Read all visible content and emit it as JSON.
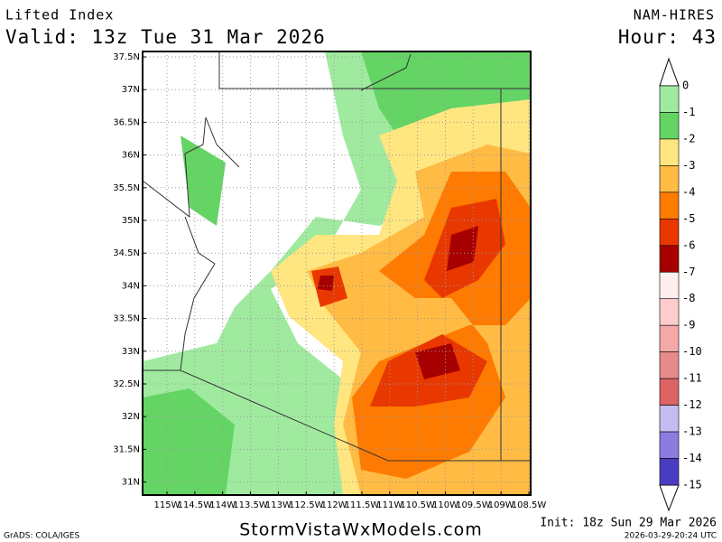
{
  "header": {
    "product": "Lifted Index",
    "valid": "Valid: 13z Tue 31 Mar 2026",
    "model": "NAM-HIRES",
    "hour": "Hour: 43"
  },
  "map": {
    "lat_labels": [
      "37.5N",
      "37N",
      "36.5N",
      "36N",
      "35.5N",
      "35N",
      "34.5N",
      "34N",
      "33.5N",
      "33N",
      "32.5N",
      "32N",
      "31.5N",
      "31N"
    ],
    "lon_labels": [
      "115W",
      "114.5W",
      "114W",
      "113.5W",
      "113W",
      "112.5W",
      "112W",
      "111.5W",
      "111W",
      "110.5W",
      "110W",
      "109.5W",
      "109W",
      "108.5W"
    ]
  },
  "colorbar": {
    "labels": [
      "0",
      "-1",
      "-2",
      "-3",
      "-4",
      "-5",
      "-6",
      "-7",
      "-8",
      "-9",
      "-10",
      "-11",
      "-12",
      "-13",
      "-14",
      "-15"
    ],
    "colors": [
      "#a0eaa0",
      "#64d464",
      "#ffe680",
      "#ffbb44",
      "#ff7a00",
      "#e83800",
      "#a60000",
      "#ffeeee",
      "#ffcccc",
      "#f5a8a8",
      "#e68a8a",
      "#dc6464",
      "#c4bdf2",
      "#8c7ce0",
      "#4a3cc0"
    ]
  },
  "footer": {
    "credit": "GrADS: COLA/IGES",
    "site": "StormVistaWxModels.com",
    "init": "Init: 18z Sun 29 Mar 2026",
    "stamp": "2026-03-29-20:24 UTC"
  }
}
